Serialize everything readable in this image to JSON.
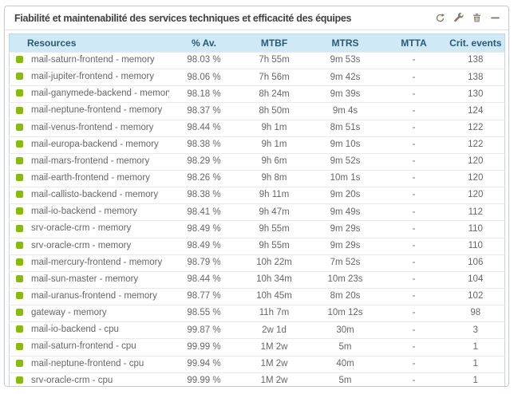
{
  "widget": {
    "title": "Fiabilité et maintenabilité des services techniques et efficacité des équipes",
    "toolbar": {
      "refresh_label": "refresh",
      "settings_label": "settings",
      "delete_label": "delete",
      "collapse_label": "collapse"
    }
  },
  "colors": {
    "status_ok_green": "#88b917",
    "header_bg": "#cfe9f6",
    "header_text": "#2b5a73",
    "table_border": "#bcd6e4",
    "toolbar_icon": "#857a6c",
    "body_text": "#666666",
    "title_text": "#404040"
  },
  "table": {
    "columns": [
      {
        "key": "resource",
        "label": "Resources",
        "align": "left"
      },
      {
        "key": "availability",
        "label": "% Av.",
        "align": "center"
      },
      {
        "key": "mtbf",
        "label": "MTBF",
        "align": "center"
      },
      {
        "key": "mtrs",
        "label": "MTRS",
        "align": "center"
      },
      {
        "key": "mtta",
        "label": "MTTA",
        "align": "center"
      },
      {
        "key": "crit",
        "label": "Crit. events",
        "align": "center"
      }
    ],
    "rows": [
      {
        "status": "ok",
        "resource": "mail-saturn-frontend - memory",
        "availability": "98.03 %",
        "mtbf": "7h 55m",
        "mtrs": "9m 53s",
        "mtta": "-",
        "crit": "138"
      },
      {
        "status": "ok",
        "resource": "mail-jupiter-frontend - memory",
        "availability": "98.06 %",
        "mtbf": "7h 56m",
        "mtrs": "9m 42s",
        "mtta": "-",
        "crit": "138"
      },
      {
        "status": "ok",
        "resource": "mail-ganymede-backend - memory",
        "availability": "98.18 %",
        "mtbf": "8h 24m",
        "mtrs": "9m 39s",
        "mtta": "-",
        "crit": "130"
      },
      {
        "status": "ok",
        "resource": "mail-neptune-frontend - memory",
        "availability": "98.37 %",
        "mtbf": "8h 50m",
        "mtrs": "9m 4s",
        "mtta": "-",
        "crit": "124"
      },
      {
        "status": "ok",
        "resource": "mail-venus-frontend - memory",
        "availability": "98.44 %",
        "mtbf": "9h 1m",
        "mtrs": "8m 51s",
        "mtta": "-",
        "crit": "122"
      },
      {
        "status": "ok",
        "resource": "mail-europa-backend - memory",
        "availability": "98.38 %",
        "mtbf": "9h 1m",
        "mtrs": "9m 10s",
        "mtta": "-",
        "crit": "122"
      },
      {
        "status": "ok",
        "resource": "mail-mars-frontend - memory",
        "availability": "98.29 %",
        "mtbf": "9h 6m",
        "mtrs": "9m 52s",
        "mtta": "-",
        "crit": "120"
      },
      {
        "status": "ok",
        "resource": "mail-earth-frontend - memory",
        "availability": "98.26 %",
        "mtbf": "9h 8m",
        "mtrs": "10m 1s",
        "mtta": "-",
        "crit": "120"
      },
      {
        "status": "ok",
        "resource": "mail-callisto-backend - memory",
        "availability": "98.38 %",
        "mtbf": "9h 11m",
        "mtrs": "9m 20s",
        "mtta": "-",
        "crit": "120"
      },
      {
        "status": "ok",
        "resource": "mail-io-backend - memory",
        "availability": "98.41 %",
        "mtbf": "9h 47m",
        "mtrs": "9m 49s",
        "mtta": "-",
        "crit": "112"
      },
      {
        "status": "ok",
        "resource": "srv-oracle-crm - memory",
        "availability": "98.49 %",
        "mtbf": "9h 55m",
        "mtrs": "9m 29s",
        "mtta": "-",
        "crit": "110"
      },
      {
        "status": "ok",
        "resource": "srv-oracle-crm - memory",
        "availability": "98.49 %",
        "mtbf": "9h 55m",
        "mtrs": "9m 29s",
        "mtta": "-",
        "crit": "110"
      },
      {
        "status": "ok",
        "resource": "mail-mercury-frontend - memory",
        "availability": "98.79 %",
        "mtbf": "10h 22m",
        "mtrs": "7m 52s",
        "mtta": "-",
        "crit": "106"
      },
      {
        "status": "ok",
        "resource": "mail-sun-master - memory",
        "availability": "98.44 %",
        "mtbf": "10h 34m",
        "mtrs": "10m 23s",
        "mtta": "-",
        "crit": "104"
      },
      {
        "status": "ok",
        "resource": "mail-uranus-frontend - memory",
        "availability": "98.77 %",
        "mtbf": "10h 45m",
        "mtrs": "8m 20s",
        "mtta": "-",
        "crit": "102"
      },
      {
        "status": "ok",
        "resource": "gateway - memory",
        "availability": "98.55 %",
        "mtbf": "11h 7m",
        "mtrs": "10m 12s",
        "mtta": "-",
        "crit": "98"
      },
      {
        "status": "ok",
        "resource": "mail-io-backend - cpu",
        "availability": "99.87 %",
        "mtbf": "2w 1d",
        "mtrs": "30m",
        "mtta": "-",
        "crit": "3"
      },
      {
        "status": "ok",
        "resource": "mail-saturn-frontend - cpu",
        "availability": "99.99 %",
        "mtbf": "1M 2w",
        "mtrs": "5m",
        "mtta": "-",
        "crit": "1"
      },
      {
        "status": "ok",
        "resource": "mail-neptune-frontend - cpu",
        "availability": "99.94 %",
        "mtbf": "1M 2w",
        "mtrs": "40m",
        "mtta": "-",
        "crit": "1"
      },
      {
        "status": "ok",
        "resource": "srv-oracle-crm - cpu",
        "availability": "99.99 %",
        "mtbf": "1M 2w",
        "mtrs": "5m",
        "mtta": "-",
        "crit": "1"
      }
    ]
  }
}
